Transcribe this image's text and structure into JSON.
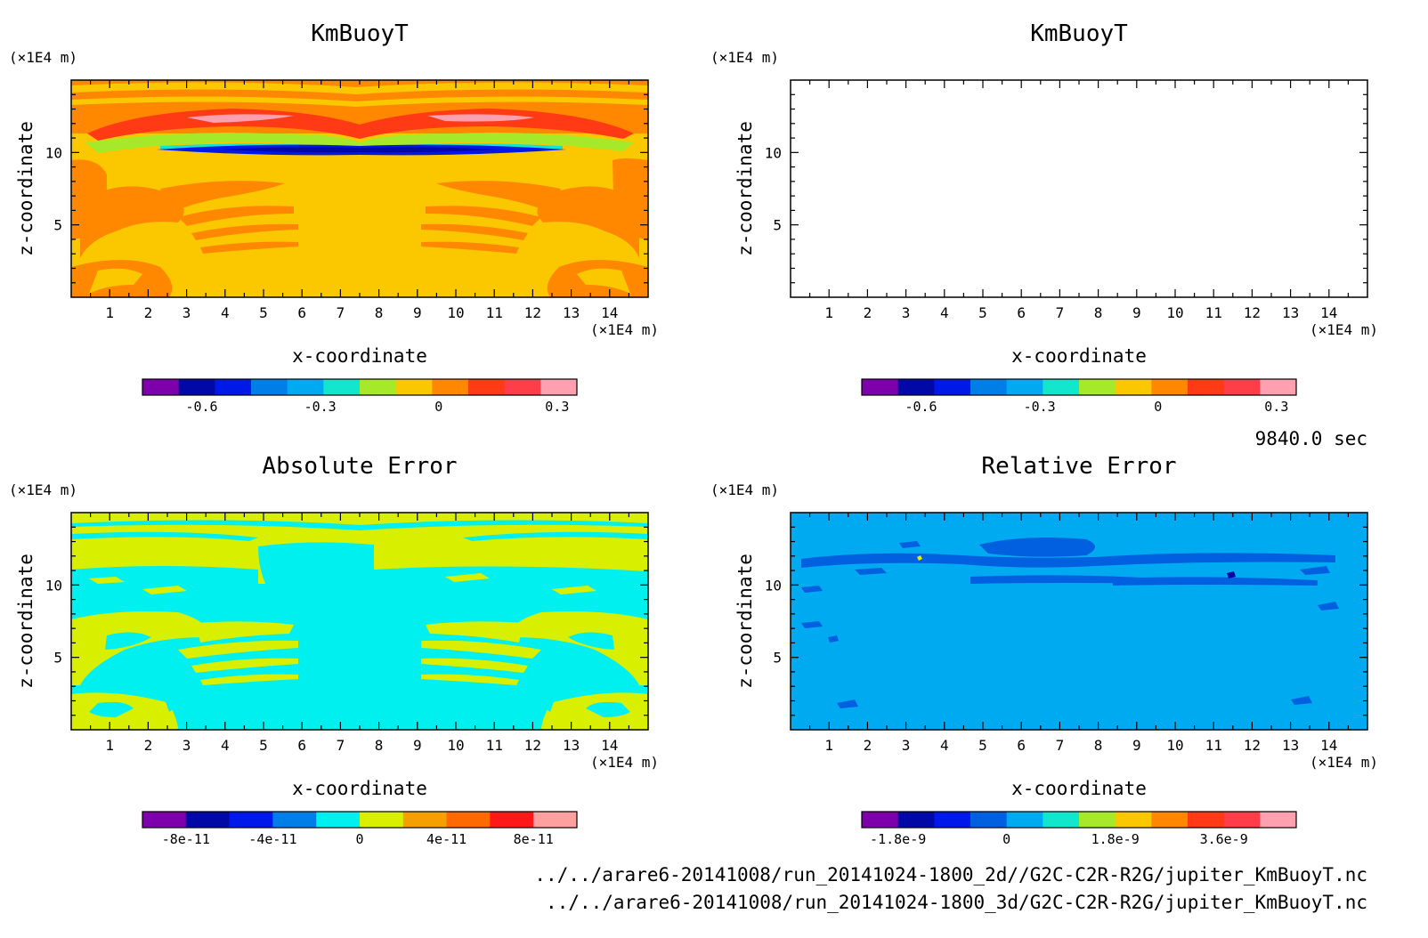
{
  "time_label": "9840.0 sec",
  "files": [
    "../../arare6-20141008/run_20141024-1800_2d//G2C-C2R-R2G/jupiter_KmBuoyT.nc",
    "../../arare6-20141008/run_20141024-1800_3d/G2C-C2R-R2G/jupiter_KmBuoyT.nc"
  ],
  "colors": {
    "kmbuoyt_levels": [
      "#7e00aa",
      "#0008a6",
      "#0018e8",
      "#007ee8",
      "#00aaf0",
      "#12e6cc",
      "#a6e82a",
      "#fbc800",
      "#ff8800",
      "#ff3a14",
      "#ff3e4a",
      "#ffa0b0"
    ],
    "abs_levels": [
      "#7e00aa",
      "#0008a6",
      "#0018e8",
      "#007ee8",
      "#00f0f0",
      "#d8f000",
      "#f5a000",
      "#ff6a00",
      "#ff1818",
      "#ffa0a0"
    ],
    "rel_levels": [
      "#7e00aa",
      "#0008a6",
      "#0018e8",
      "#0060e0",
      "#00aaf0",
      "#12e6cc",
      "#a6e82a",
      "#fbc800",
      "#ff8800",
      "#ff3a14",
      "#ff3e4a",
      "#ffa0b0"
    ]
  },
  "chart_data": [
    {
      "type": "heatmap",
      "title": "KmBuoyT",
      "xlabel": "x-coordinate",
      "ylabel": "z-coordinate",
      "x_unit": "(×1E4 m)",
      "y_unit": "(×1E4 m)",
      "x_ticks": [
        "1",
        "2",
        "3",
        "4",
        "5",
        "6",
        "7",
        "8",
        "9",
        "10",
        "11",
        "12",
        "13",
        "14"
      ],
      "y_ticks": [
        "5",
        "10"
      ],
      "xlim": [
        0,
        15
      ],
      "ylim": [
        0,
        15
      ],
      "colorbar": {
        "tick_labels": [
          "-0.6",
          "-0.3",
          "0",
          "0.3"
        ],
        "tick_values": [
          -0.6,
          -0.3,
          0,
          0.3
        ],
        "range": [
          -0.75,
          0.35
        ],
        "levels": 12
      }
    },
    {
      "type": "heatmap",
      "title": "KmBuoyT",
      "xlabel": "x-coordinate",
      "ylabel": "z-coordinate",
      "x_unit": "(×1E4 m)",
      "y_unit": "(×1E4 m)",
      "x_ticks": [
        "1",
        "2",
        "3",
        "4",
        "5",
        "6",
        "7",
        "8",
        "9",
        "10",
        "11",
        "12",
        "13",
        "14"
      ],
      "y_ticks": [
        "5",
        "10"
      ],
      "xlim": [
        0,
        15
      ],
      "ylim": [
        0,
        15
      ],
      "colorbar": {
        "tick_labels": [
          "-0.6",
          "-0.3",
          "0",
          "0.3"
        ],
        "tick_values": [
          -0.6,
          -0.3,
          0,
          0.3
        ],
        "range": [
          -0.75,
          0.35
        ],
        "levels": 12
      }
    },
    {
      "type": "heatmap",
      "title": "Absolute Error",
      "xlabel": "x-coordinate",
      "ylabel": "z-coordinate",
      "x_unit": "(×1E4 m)",
      "y_unit": "(×1E4 m)",
      "x_ticks": [
        "1",
        "2",
        "3",
        "4",
        "5",
        "6",
        "7",
        "8",
        "9",
        "10",
        "11",
        "12",
        "13",
        "14"
      ],
      "y_ticks": [
        "5",
        "10"
      ],
      "xlim": [
        0,
        15
      ],
      "ylim": [
        0,
        15
      ],
      "colorbar": {
        "tick_labels": [
          "-8e-11",
          "-4e-11",
          "0",
          "4e-11",
          "8e-11"
        ],
        "tick_values": [
          -8e-11,
          -4e-11,
          0,
          4e-11,
          8e-11
        ],
        "range": [
          -1e-10,
          1e-10
        ],
        "levels": 10
      }
    },
    {
      "type": "heatmap",
      "title": "Relative Error",
      "xlabel": "x-coordinate",
      "ylabel": "z-coordinate",
      "x_unit": "(×1E4 m)",
      "y_unit": "(×1E4 m)",
      "x_ticks": [
        "1",
        "2",
        "3",
        "4",
        "5",
        "6",
        "7",
        "8",
        "9",
        "10",
        "11",
        "12",
        "13",
        "14"
      ],
      "y_ticks": [
        "5",
        "10"
      ],
      "xlim": [
        0,
        15
      ],
      "ylim": [
        0,
        15
      ],
      "colorbar": {
        "tick_labels": [
          "-1.8e-9",
          "0",
          "1.8e-9",
          "3.6e-9"
        ],
        "tick_values": [
          -1.8e-09,
          0,
          1.8e-09,
          3.6e-09
        ],
        "range": [
          -2.4e-09,
          4.8e-09
        ],
        "levels": 12
      }
    }
  ]
}
